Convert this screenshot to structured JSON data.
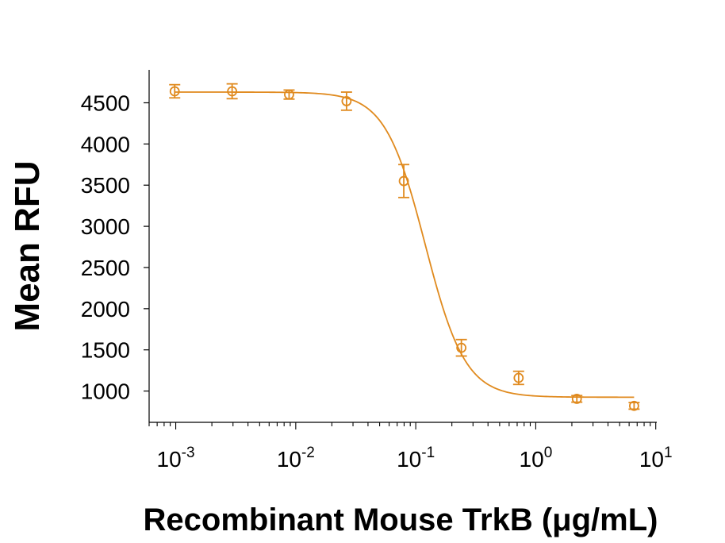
{
  "chart_data": {
    "type": "scatter",
    "xlabel": "Recombinant Mouse TrkB (μg/mL)",
    "ylabel": "Mean RFU",
    "x_scale": "log",
    "xlim": [
      0.0006,
      10.2
    ],
    "ylim": [
      620,
      4900
    ],
    "x_ticks": [
      {
        "value": 0.001,
        "base": "10",
        "exp": "-3"
      },
      {
        "value": 0.01,
        "base": "10",
        "exp": "-2"
      },
      {
        "value": 0.1,
        "base": "10",
        "exp": "-1"
      },
      {
        "value": 1,
        "base": "10",
        "exp": "0"
      },
      {
        "value": 10,
        "base": "10",
        "exp": "1"
      }
    ],
    "y_ticks": [
      1000,
      1500,
      2000,
      2500,
      3000,
      3500,
      4000,
      4500
    ],
    "color": "#e08a1e",
    "grid": false,
    "series": [
      {
        "points": [
          {
            "x": 0.00098,
            "y": 4640,
            "err": 80
          },
          {
            "x": 0.00295,
            "y": 4640,
            "err": 90
          },
          {
            "x": 0.0088,
            "y": 4600,
            "err": 55
          },
          {
            "x": 0.0265,
            "y": 4520,
            "err": 110
          },
          {
            "x": 0.0795,
            "y": 3550,
            "err": 200
          },
          {
            "x": 0.24,
            "y": 1525,
            "err": 100
          },
          {
            "x": 0.72,
            "y": 1160,
            "err": 80
          },
          {
            "x": 2.2,
            "y": 905,
            "err": 40
          },
          {
            "x": 6.6,
            "y": 820,
            "err": 40
          }
        ],
        "fit": {
          "top": 4630,
          "bottom": 925,
          "ec50": 0.12,
          "hill": 2.6,
          "x_start": 0.00098,
          "x_end": 6.6
        }
      }
    ]
  }
}
